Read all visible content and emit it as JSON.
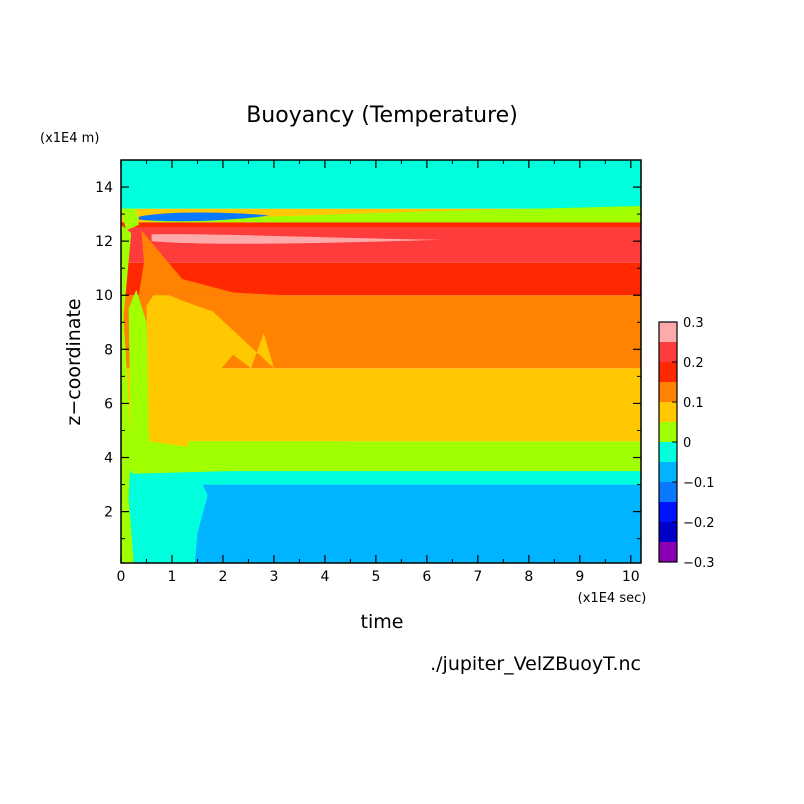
{
  "chart_data": {
    "type": "heatmap",
    "title": "Buoyancy (Temperature)",
    "xlabel": "time",
    "ylabel": "z−coordinate",
    "x_unit_label": "(x1E4 sec)",
    "y_unit_label": "(x1E4 m)",
    "source_label": "./jupiter_VelZBuoyT.nc",
    "xlim": [
      0,
      10.2
    ],
    "ylim": [
      0.1,
      15
    ],
    "x_ticks": [
      "0",
      "1",
      "2",
      "3",
      "4",
      "5",
      "6",
      "7",
      "8",
      "9",
      "10"
    ],
    "y_ticks": [
      "2",
      "4",
      "6",
      "8",
      "10",
      "12",
      "14"
    ],
    "colorbar": {
      "levels": [
        -0.3,
        -0.25,
        -0.2,
        -0.15,
        -0.1,
        -0.05,
        0,
        0.05,
        0.1,
        0.15,
        0.2,
        0.25,
        0.3
      ],
      "tick_labels": [
        "−0.3",
        "−0.2",
        "−0.1",
        "0",
        "0.1",
        "0.2",
        "0.3"
      ],
      "colors": [
        "#8b00b4",
        "#0000c8",
        "#0014ff",
        "#0a78ff",
        "#00b4ff",
        "#00ffdc",
        "#a0ff00",
        "#ffc800",
        "#ff8200",
        "#ff2800",
        "#ff3c3c",
        "#ffaaaa"
      ]
    },
    "bands": [
      {
        "z_min": 0.1,
        "z_max": 3.0,
        "value_range": "-0.1 to -0.05"
      },
      {
        "z_min": 3.0,
        "z_max": 3.5,
        "value_range": "-0.05 to 0"
      },
      {
        "z_min": 3.5,
        "z_max": 4.6,
        "value_range": "0 to 0.05"
      },
      {
        "z_min": 4.6,
        "z_max": 7.3,
        "value_range": "0.05 to 0.1"
      },
      {
        "z_min": 7.3,
        "z_max": 10.0,
        "value_range": "0.1 to 0.15"
      },
      {
        "z_min": 10.0,
        "z_max": 11.2,
        "value_range": "0.15 to 0.2"
      },
      {
        "z_min": 11.2,
        "z_max": 12.5,
        "value_range": "0.2 to 0.25"
      },
      {
        "z_min": 12.5,
        "z_max": 12.7,
        "value_range": "0.15 to 0.2"
      },
      {
        "z_min": 12.7,
        "z_max": 13.2,
        "value_range": "0.05 to 0.1"
      },
      {
        "z_min": 13.2,
        "z_max": 15.0,
        "value_range": "-0.05 to 0"
      }
    ],
    "max_region": {
      "value_range": "0.25 to 0.3",
      "time_range": [
        0.6,
        6.3
      ],
      "z_range": [
        11.8,
        12.3
      ]
    },
    "min_region": {
      "value_range": "-0.15 to -0.1",
      "time_range": [
        0.35,
        2.9
      ],
      "z_range": [
        12.7,
        13.1
      ]
    },
    "grid": false,
    "legend": "colorbar-right"
  }
}
